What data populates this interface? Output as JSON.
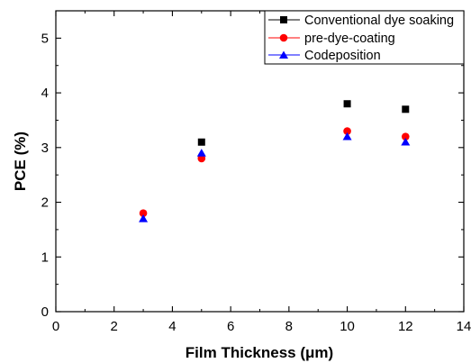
{
  "chart_data": {
    "type": "scatter",
    "title": "",
    "xlabel": "Film Thickness (μm)",
    "ylabel": "PCE (%)",
    "xlim": [
      0,
      14
    ],
    "ylim": [
      0,
      5.5
    ],
    "xticks": [
      0,
      2,
      4,
      6,
      8,
      10,
      12,
      14
    ],
    "yticks": [
      0,
      1,
      2,
      3,
      4,
      5
    ],
    "x_tick_labels": [
      "0",
      "2",
      "4",
      "6",
      "8",
      "10",
      "12",
      "14"
    ],
    "y_tick_labels": [
      "0",
      "1",
      "2",
      "3",
      "4",
      "5"
    ],
    "grid": false,
    "legend_position": "top-right",
    "series": [
      {
        "name": "Conventional dye soaking",
        "marker": "square",
        "color": "#000000",
        "x": [
          5,
          10,
          12
        ],
        "y": [
          3.1,
          3.8,
          3.7
        ]
      },
      {
        "name": "pre-dye-coating",
        "marker": "circle",
        "color": "#ff0000",
        "x": [
          3,
          5,
          10,
          12
        ],
        "y": [
          1.8,
          2.8,
          3.3,
          3.2
        ]
      },
      {
        "name": "Codeposition",
        "marker": "triangle",
        "color": "#0000ff",
        "x": [
          3,
          5,
          10,
          12
        ],
        "y": [
          1.7,
          2.9,
          3.2,
          3.1
        ]
      }
    ]
  }
}
